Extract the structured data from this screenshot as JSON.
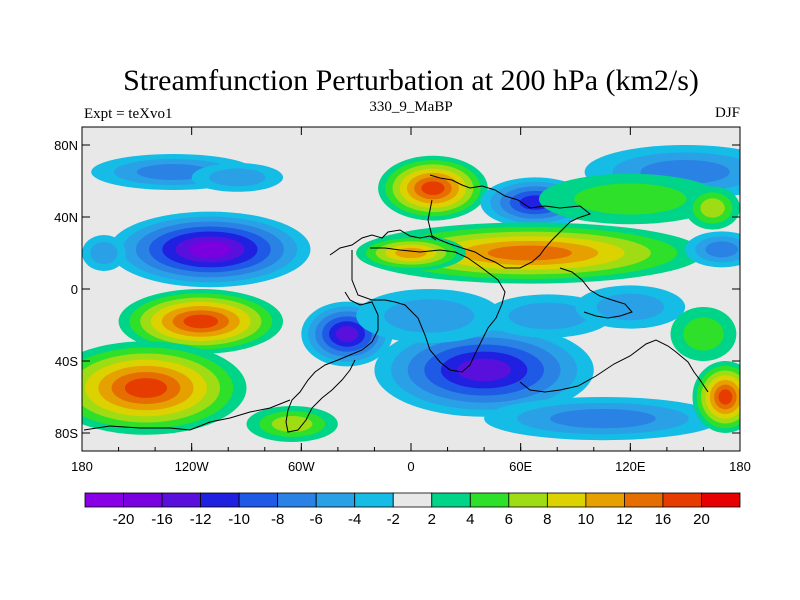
{
  "chart_data": {
    "type": "heatmap",
    "title": "Streamfunction Perturbation at 200 hPa (km2/s)",
    "subtitle_left": "Expt = teXvo1",
    "subtitle_center": "330_9_MaBP",
    "subtitle_right": "DJF",
    "x_ticks": [
      "180",
      "120W",
      "60W",
      "0",
      "60E",
      "120E",
      "180"
    ],
    "x_tick_values": [
      -180,
      -120,
      -60,
      0,
      60,
      120,
      180
    ],
    "y_ticks": [
      "80N",
      "40N",
      "0",
      "40S",
      "80S"
    ],
    "y_tick_values": [
      80,
      40,
      0,
      -40,
      -80
    ],
    "xlim": [
      -180,
      180
    ],
    "ylim": [
      -90,
      90
    ],
    "colorbar": {
      "labels": [
        "-20",
        "-16",
        "-12",
        "-10",
        "-8",
        "-6",
        "-4",
        "-2",
        "2",
        "4",
        "6",
        "8",
        "10",
        "12",
        "16",
        "20"
      ],
      "levels": [
        -20,
        -16,
        -12,
        -10,
        -8,
        -6,
        -4,
        -2,
        2,
        4,
        6,
        8,
        10,
        12,
        16,
        20
      ],
      "colors": [
        "#8a00e6",
        "#7a00e0",
        "#5a10dc",
        "#2020e0",
        "#1e5ae6",
        "#2a82e4",
        "#2aa0e6",
        "#14bce6",
        "#e8e8e8",
        "#00d488",
        "#2ee02a",
        "#a0dc14",
        "#dcd200",
        "#e6a000",
        "#e66e00",
        "#e63c00",
        "#e60000"
      ]
    },
    "features": [
      {
        "lon": 150,
        "lat": 65,
        "rx": 55,
        "ry": 15,
        "value": -7
      },
      {
        "lon": -130,
        "lat": 65,
        "rx": 45,
        "ry": 10,
        "value": -8
      },
      {
        "lon": -95,
        "lat": 62,
        "rx": 25,
        "ry": 8,
        "value": -5
      },
      {
        "lon": 12,
        "lat": 56,
        "rx": 30,
        "ry": 18,
        "value": 17
      },
      {
        "lon": 68,
        "lat": 48,
        "rx": 30,
        "ry": 14,
        "value": -11
      },
      {
        "lon": 120,
        "lat": 50,
        "rx": 50,
        "ry": 14,
        "value": 5
      },
      {
        "lon": 165,
        "lat": 45,
        "rx": 15,
        "ry": 12,
        "value": 7
      },
      {
        "lon": -110,
        "lat": 22,
        "rx": 55,
        "ry": 21,
        "value": -17
      },
      {
        "lon": 65,
        "lat": 20,
        "rx": 95,
        "ry": 17,
        "value": 15
      },
      {
        "lon": 0,
        "lat": 20,
        "rx": 30,
        "ry": 10,
        "value": 11
      },
      {
        "lon": 170,
        "lat": 22,
        "rx": 20,
        "ry": 10,
        "value": -7
      },
      {
        "lon": -168,
        "lat": 20,
        "rx": 12,
        "ry": 10,
        "value": -5
      },
      {
        "lon": -115,
        "lat": -18,
        "rx": 45,
        "ry": 18,
        "value": 17
      },
      {
        "lon": -145,
        "lat": -55,
        "rx": 55,
        "ry": 26,
        "value": 17
      },
      {
        "lon": -35,
        "lat": -25,
        "rx": 25,
        "ry": 18,
        "value": -13
      },
      {
        "lon": 40,
        "lat": -45,
        "rx": 60,
        "ry": 26,
        "value": -15
      },
      {
        "lon": 10,
        "lat": -15,
        "rx": 40,
        "ry": 15,
        "value": -5
      },
      {
        "lon": 75,
        "lat": -15,
        "rx": 35,
        "ry": 12,
        "value": -6
      },
      {
        "lon": 120,
        "lat": -10,
        "rx": 30,
        "ry": 12,
        "value": -6
      },
      {
        "lon": 105,
        "lat": -72,
        "rx": 65,
        "ry": 12,
        "value": -7
      },
      {
        "lon": 172,
        "lat": -60,
        "rx": 18,
        "ry": 20,
        "value": 16
      },
      {
        "lon": 160,
        "lat": -25,
        "rx": 18,
        "ry": 15,
        "value": 5
      },
      {
        "lon": -65,
        "lat": -75,
        "rx": 25,
        "ry": 10,
        "value": 6
      }
    ]
  }
}
